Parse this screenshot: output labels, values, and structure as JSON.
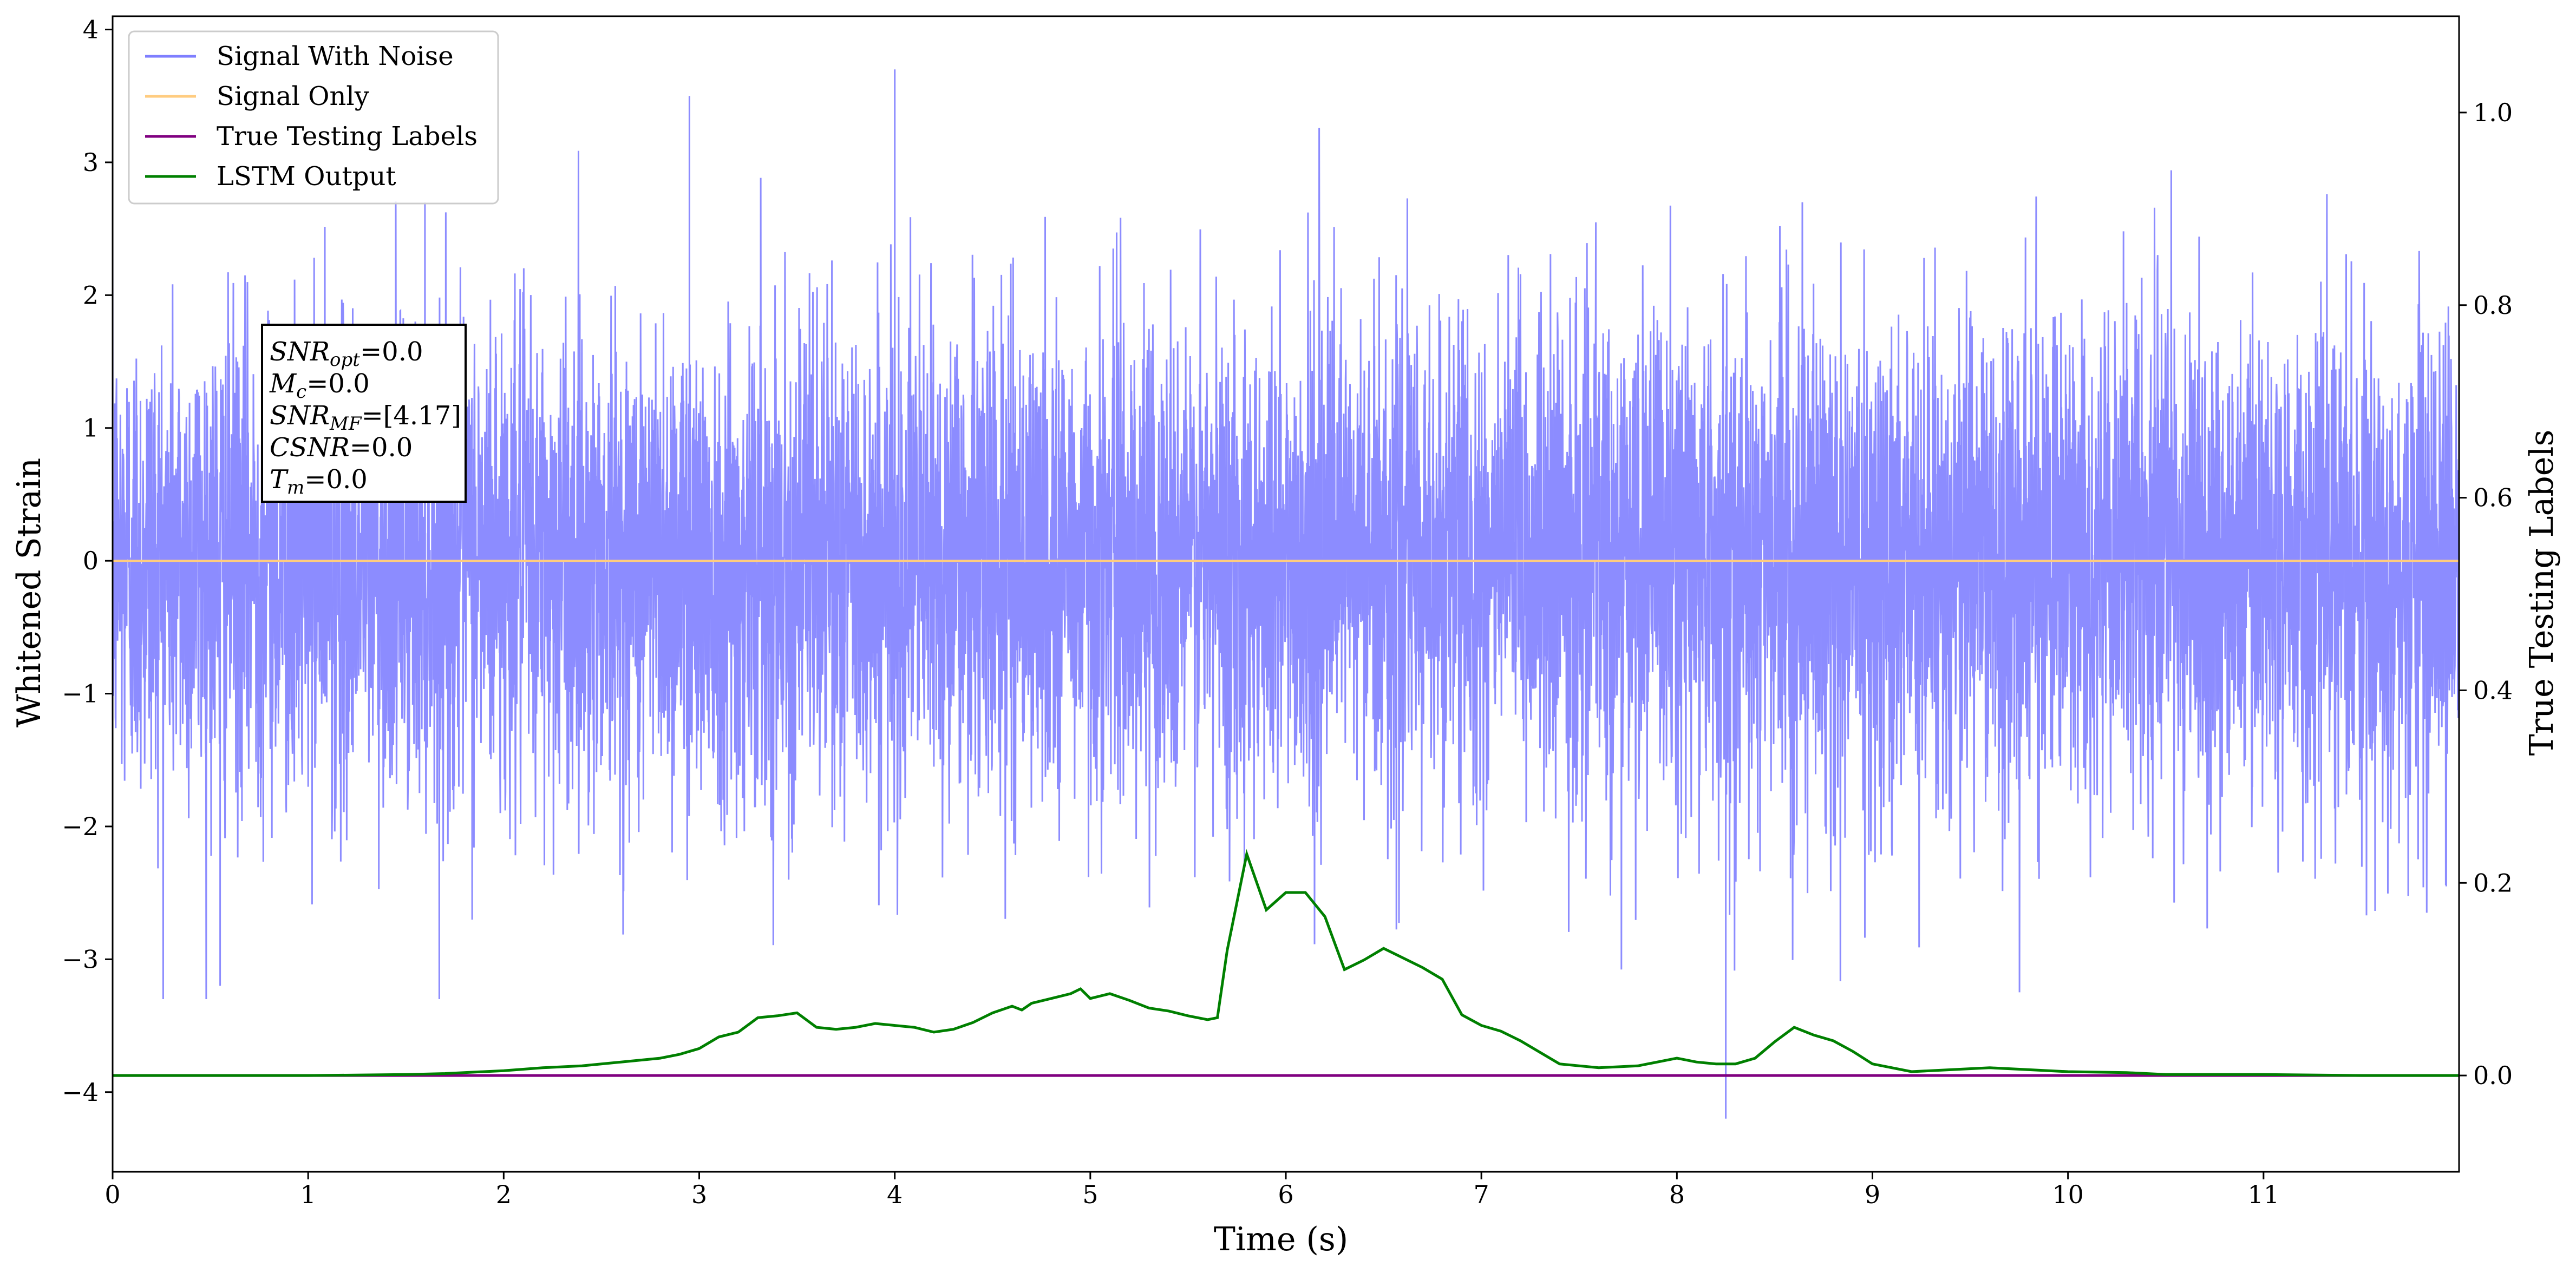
{
  "chart_data": {
    "type": "line",
    "x": {
      "label": "Time (s)",
      "range": [
        0,
        12
      ],
      "ticks": [
        "0",
        "1",
        "2",
        "3",
        "4",
        "5",
        "6",
        "7",
        "8",
        "9",
        "10",
        "11"
      ]
    },
    "y_left": {
      "label": "Whitened Strain",
      "range": [
        -4.6,
        4.1
      ],
      "ticks": [
        "−4",
        "−3",
        "−2",
        "−1",
        "0",
        "1",
        "2",
        "3",
        "4"
      ]
    },
    "y_right": {
      "label": "True Testing Labels",
      "range": [
        -0.1,
        1.1
      ],
      "ticks": [
        "0.0",
        "0.2",
        "0.4",
        "0.6",
        "0.8",
        "1.0"
      ]
    },
    "legend": {
      "placement": "upper-left",
      "entries": [
        "Signal With Noise",
        "Signal Only",
        "True Testing Labels",
        "LSTM Output"
      ]
    },
    "annotation": {
      "lines": [
        {
          "main": "SNR",
          "sub": "opt",
          "value": "=0.0"
        },
        {
          "main": "M",
          "sub": "c",
          "value": "=0.0"
        },
        {
          "main": "SNR",
          "sub": "MF",
          "value": "=[4.17]"
        },
        {
          "main": "CSNR",
          "sub": "",
          "value": "=0.0"
        },
        {
          "main": "T",
          "sub": "m",
          "value": "=0.0"
        }
      ]
    },
    "series": [
      {
        "name": "Signal With Noise",
        "axis": "left",
        "color": "#7f7fff",
        "style": "dense noise, approx. std 0.9, peaks to about ±3.7",
        "notable_extrema": [
          {
            "x": 4.0,
            "y": 3.7
          },
          {
            "x": 8.25,
            "y": -4.2
          },
          {
            "x": 2.95,
            "y": 3.5
          },
          {
            "x": 0.55,
            "y": -3.2
          }
        ]
      },
      {
        "name": "Signal Only",
        "axis": "left",
        "color": "#ffcc80",
        "x": [
          0,
          12
        ],
        "y": [
          0,
          0
        ]
      },
      {
        "name": "True Testing Labels",
        "axis": "right",
        "color": "#800080",
        "x": [
          0,
          12
        ],
        "y": [
          0,
          0
        ]
      },
      {
        "name": "LSTM Output",
        "axis": "right",
        "color": "#008000",
        "x": [
          0,
          0.5,
          1,
          1.5,
          1.7,
          2,
          2.2,
          2.4,
          2.6,
          2.8,
          2.9,
          3.0,
          3.1,
          3.2,
          3.3,
          3.4,
          3.5,
          3.6,
          3.7,
          3.8,
          3.9,
          4.0,
          4.1,
          4.2,
          4.3,
          4.4,
          4.5,
          4.6,
          4.65,
          4.7,
          4.8,
          4.9,
          4.95,
          5.0,
          5.1,
          5.2,
          5.3,
          5.4,
          5.5,
          5.6,
          5.65,
          5.7,
          5.8,
          5.9,
          6.0,
          6.1,
          6.2,
          6.3,
          6.4,
          6.5,
          6.6,
          6.7,
          6.8,
          6.9,
          7.0,
          7.1,
          7.2,
          7.4,
          7.6,
          7.8,
          8.0,
          8.1,
          8.2,
          8.3,
          8.4,
          8.5,
          8.6,
          8.7,
          8.8,
          8.9,
          9.0,
          9.2,
          9.4,
          9.6,
          9.8,
          10.0,
          10.3,
          10.5,
          11.0,
          11.5,
          12.0
        ],
        "y": [
          0.0,
          0.0,
          0.0,
          0.001,
          0.002,
          0.005,
          0.008,
          0.01,
          0.014,
          0.018,
          0.022,
          0.028,
          0.04,
          0.045,
          0.06,
          0.062,
          0.065,
          0.05,
          0.048,
          0.05,
          0.054,
          0.052,
          0.05,
          0.045,
          0.048,
          0.055,
          0.065,
          0.072,
          0.068,
          0.075,
          0.08,
          0.085,
          0.09,
          0.08,
          0.085,
          0.078,
          0.07,
          0.067,
          0.062,
          0.058,
          0.06,
          0.13,
          0.23,
          0.172,
          0.19,
          0.19,
          0.165,
          0.11,
          0.12,
          0.132,
          0.122,
          0.112,
          0.1,
          0.063,
          0.052,
          0.046,
          0.036,
          0.012,
          0.008,
          0.01,
          0.018,
          0.014,
          0.012,
          0.012,
          0.018,
          0.035,
          0.05,
          0.042,
          0.036,
          0.025,
          0.012,
          0.004,
          0.006,
          0.008,
          0.006,
          0.004,
          0.003,
          0.001,
          0.001,
          0.0,
          0.0
        ]
      }
    ]
  }
}
